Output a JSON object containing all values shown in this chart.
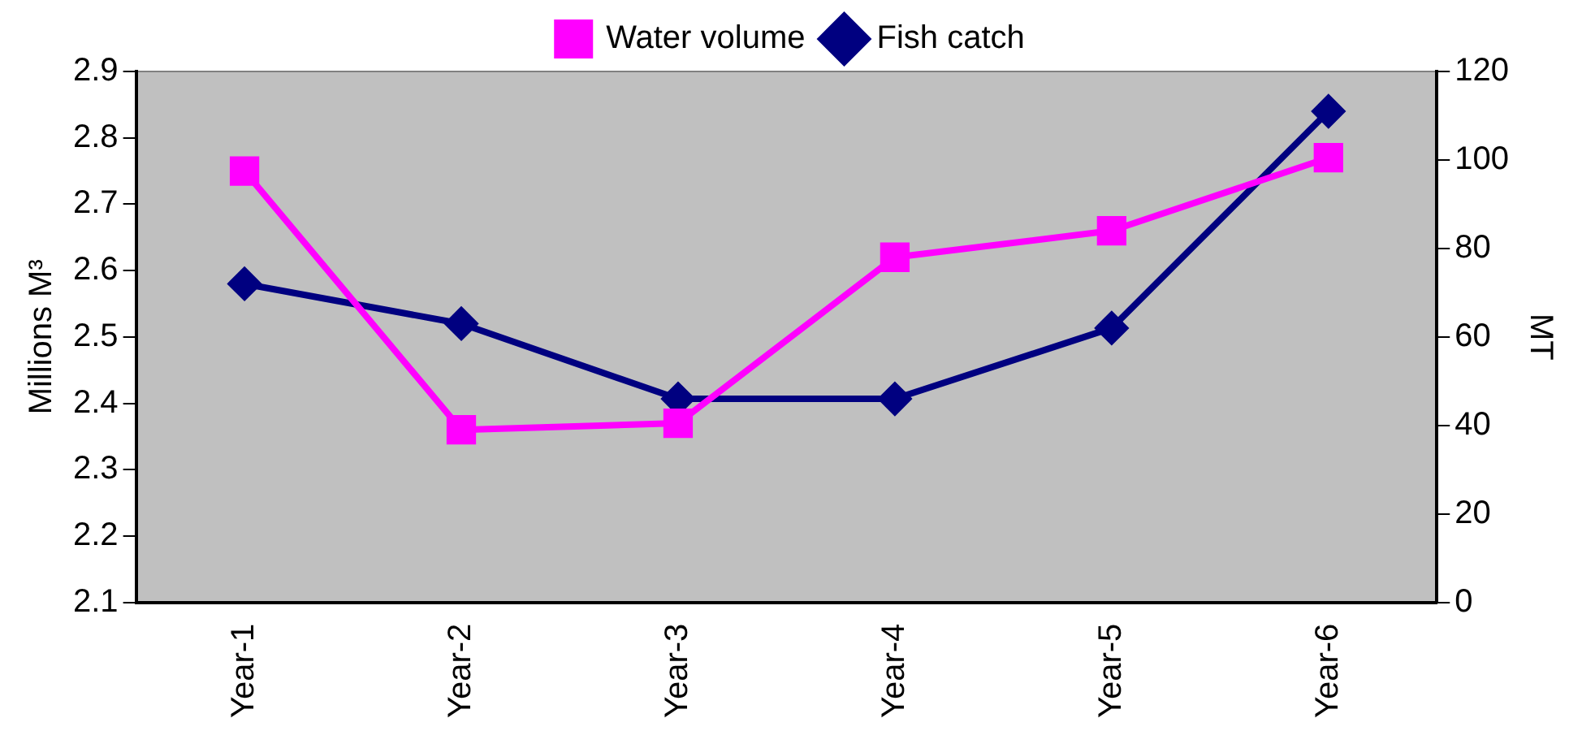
{
  "chart_data": {
    "type": "line",
    "categories": [
      "Year-1",
      "Year-2",
      "Year-3",
      "Year-4",
      "Year-5",
      "Year-6"
    ],
    "series": [
      {
        "name": "Water volume",
        "color": "#ff00ff",
        "values": [
          2.75,
          2.36,
          2.37,
          2.62,
          2.66,
          2.77
        ],
        "marker": "square"
      },
      {
        "name": "Fish catch",
        "color": "#000080",
        "values": [
          72,
          63,
          46,
          46,
          62,
          111
        ],
        "axis": "y2",
        "marker": "diamond"
      }
    ],
    "ylabel": "Millions M³",
    "y2label": "MT",
    "ylim": [
      2.1,
      2.9
    ],
    "yticks": [
      2.1,
      2.2,
      2.3,
      2.4,
      2.5,
      2.6,
      2.7,
      2.8,
      2.9
    ],
    "y2lim": [
      0,
      120
    ],
    "y2ticks": [
      0,
      20,
      40,
      60,
      80,
      100,
      120
    ],
    "legend": "top",
    "grid": false,
    "line_style": "solid"
  }
}
